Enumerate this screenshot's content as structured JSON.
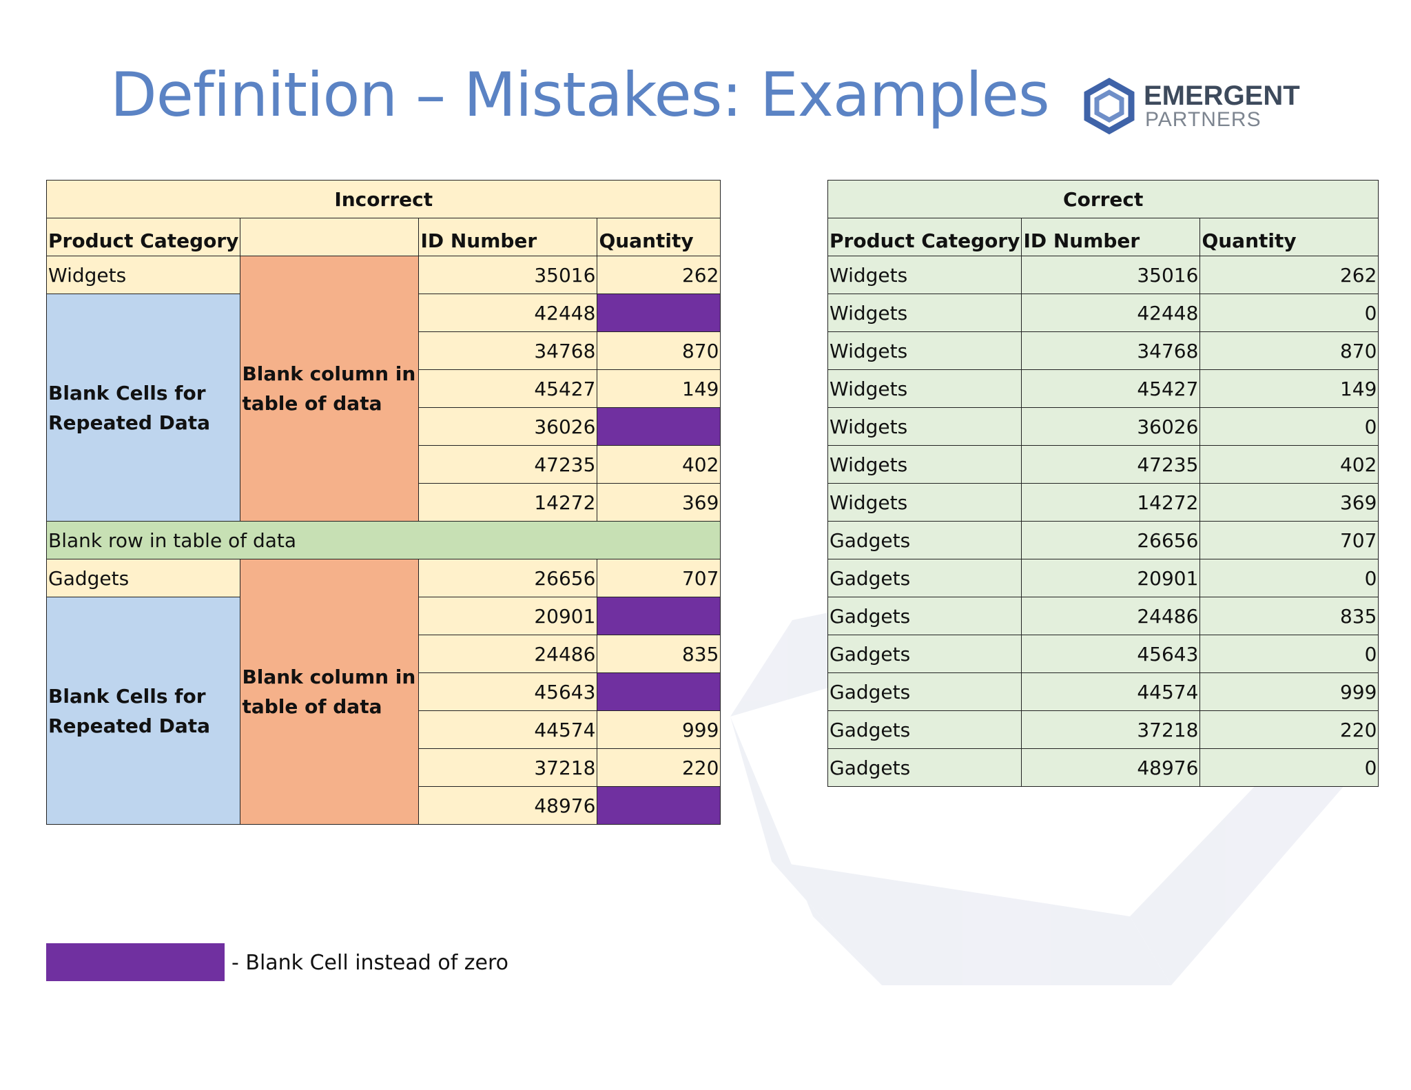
{
  "title": "Definition – Mistakes:  Examples",
  "logo": {
    "line1": "EMERGENT",
    "line2": "PARTNERS"
  },
  "incorrect": {
    "title": "Incorrect",
    "headers": {
      "category": "Product Category",
      "id": "ID Number",
      "quantity": "Quantity"
    },
    "widgets_category": "Widgets",
    "gadgets_category": "Gadgets",
    "blank_cells_label": "Blank Cells for Repeated Data",
    "blank_column_label": "Blank column in table of data",
    "blank_row_label": "Blank row in table of data",
    "widget_rows": [
      {
        "id": "35016",
        "qty": "262"
      },
      {
        "id": "42448",
        "qty": ""
      },
      {
        "id": "34768",
        "qty": "870"
      },
      {
        "id": "45427",
        "qty": "149"
      },
      {
        "id": "36026",
        "qty": ""
      },
      {
        "id": "47235",
        "qty": "402"
      },
      {
        "id": "14272",
        "qty": "369"
      }
    ],
    "gadget_rows": [
      {
        "id": "26656",
        "qty": "707"
      },
      {
        "id": "20901",
        "qty": ""
      },
      {
        "id": "24486",
        "qty": "835"
      },
      {
        "id": "45643",
        "qty": ""
      },
      {
        "id": "44574",
        "qty": "999"
      },
      {
        "id": "37218",
        "qty": "220"
      },
      {
        "id": "48976",
        "qty": ""
      }
    ]
  },
  "correct": {
    "title": "Correct",
    "headers": {
      "category": "Product Category",
      "id": "ID Number",
      "quantity": "Quantity"
    },
    "rows": [
      {
        "category": "Widgets",
        "id": "35016",
        "qty": "262"
      },
      {
        "category": "Widgets",
        "id": "42448",
        "qty": "0"
      },
      {
        "category": "Widgets",
        "id": "34768",
        "qty": "870"
      },
      {
        "category": "Widgets",
        "id": "45427",
        "qty": "149"
      },
      {
        "category": "Widgets",
        "id": "36026",
        "qty": "0"
      },
      {
        "category": "Widgets",
        "id": "47235",
        "qty": "402"
      },
      {
        "category": "Widgets",
        "id": "14272",
        "qty": "369"
      },
      {
        "category": "Gadgets",
        "id": "26656",
        "qty": "707"
      },
      {
        "category": "Gadgets",
        "id": "20901",
        "qty": "0"
      },
      {
        "category": "Gadgets",
        "id": "24486",
        "qty": "835"
      },
      {
        "category": "Gadgets",
        "id": "45643",
        "qty": "0"
      },
      {
        "category": "Gadgets",
        "id": "44574",
        "qty": "999"
      },
      {
        "category": "Gadgets",
        "id": "37218",
        "qty": "220"
      },
      {
        "category": "Gadgets",
        "id": "48976",
        "qty": "0"
      }
    ]
  },
  "legend": {
    "label": "- Blank Cell instead of zero",
    "swatch_color": "#7030a0"
  },
  "colors": {
    "title": "#5b83c4",
    "incorrect_bg": "#fff1cb",
    "correct_bg": "#e3efdc",
    "blank_cells": "#bed5ee",
    "blank_column": "#f5b18a",
    "blank_row": "#c7e0b4",
    "blank_value": "#7030a0"
  }
}
